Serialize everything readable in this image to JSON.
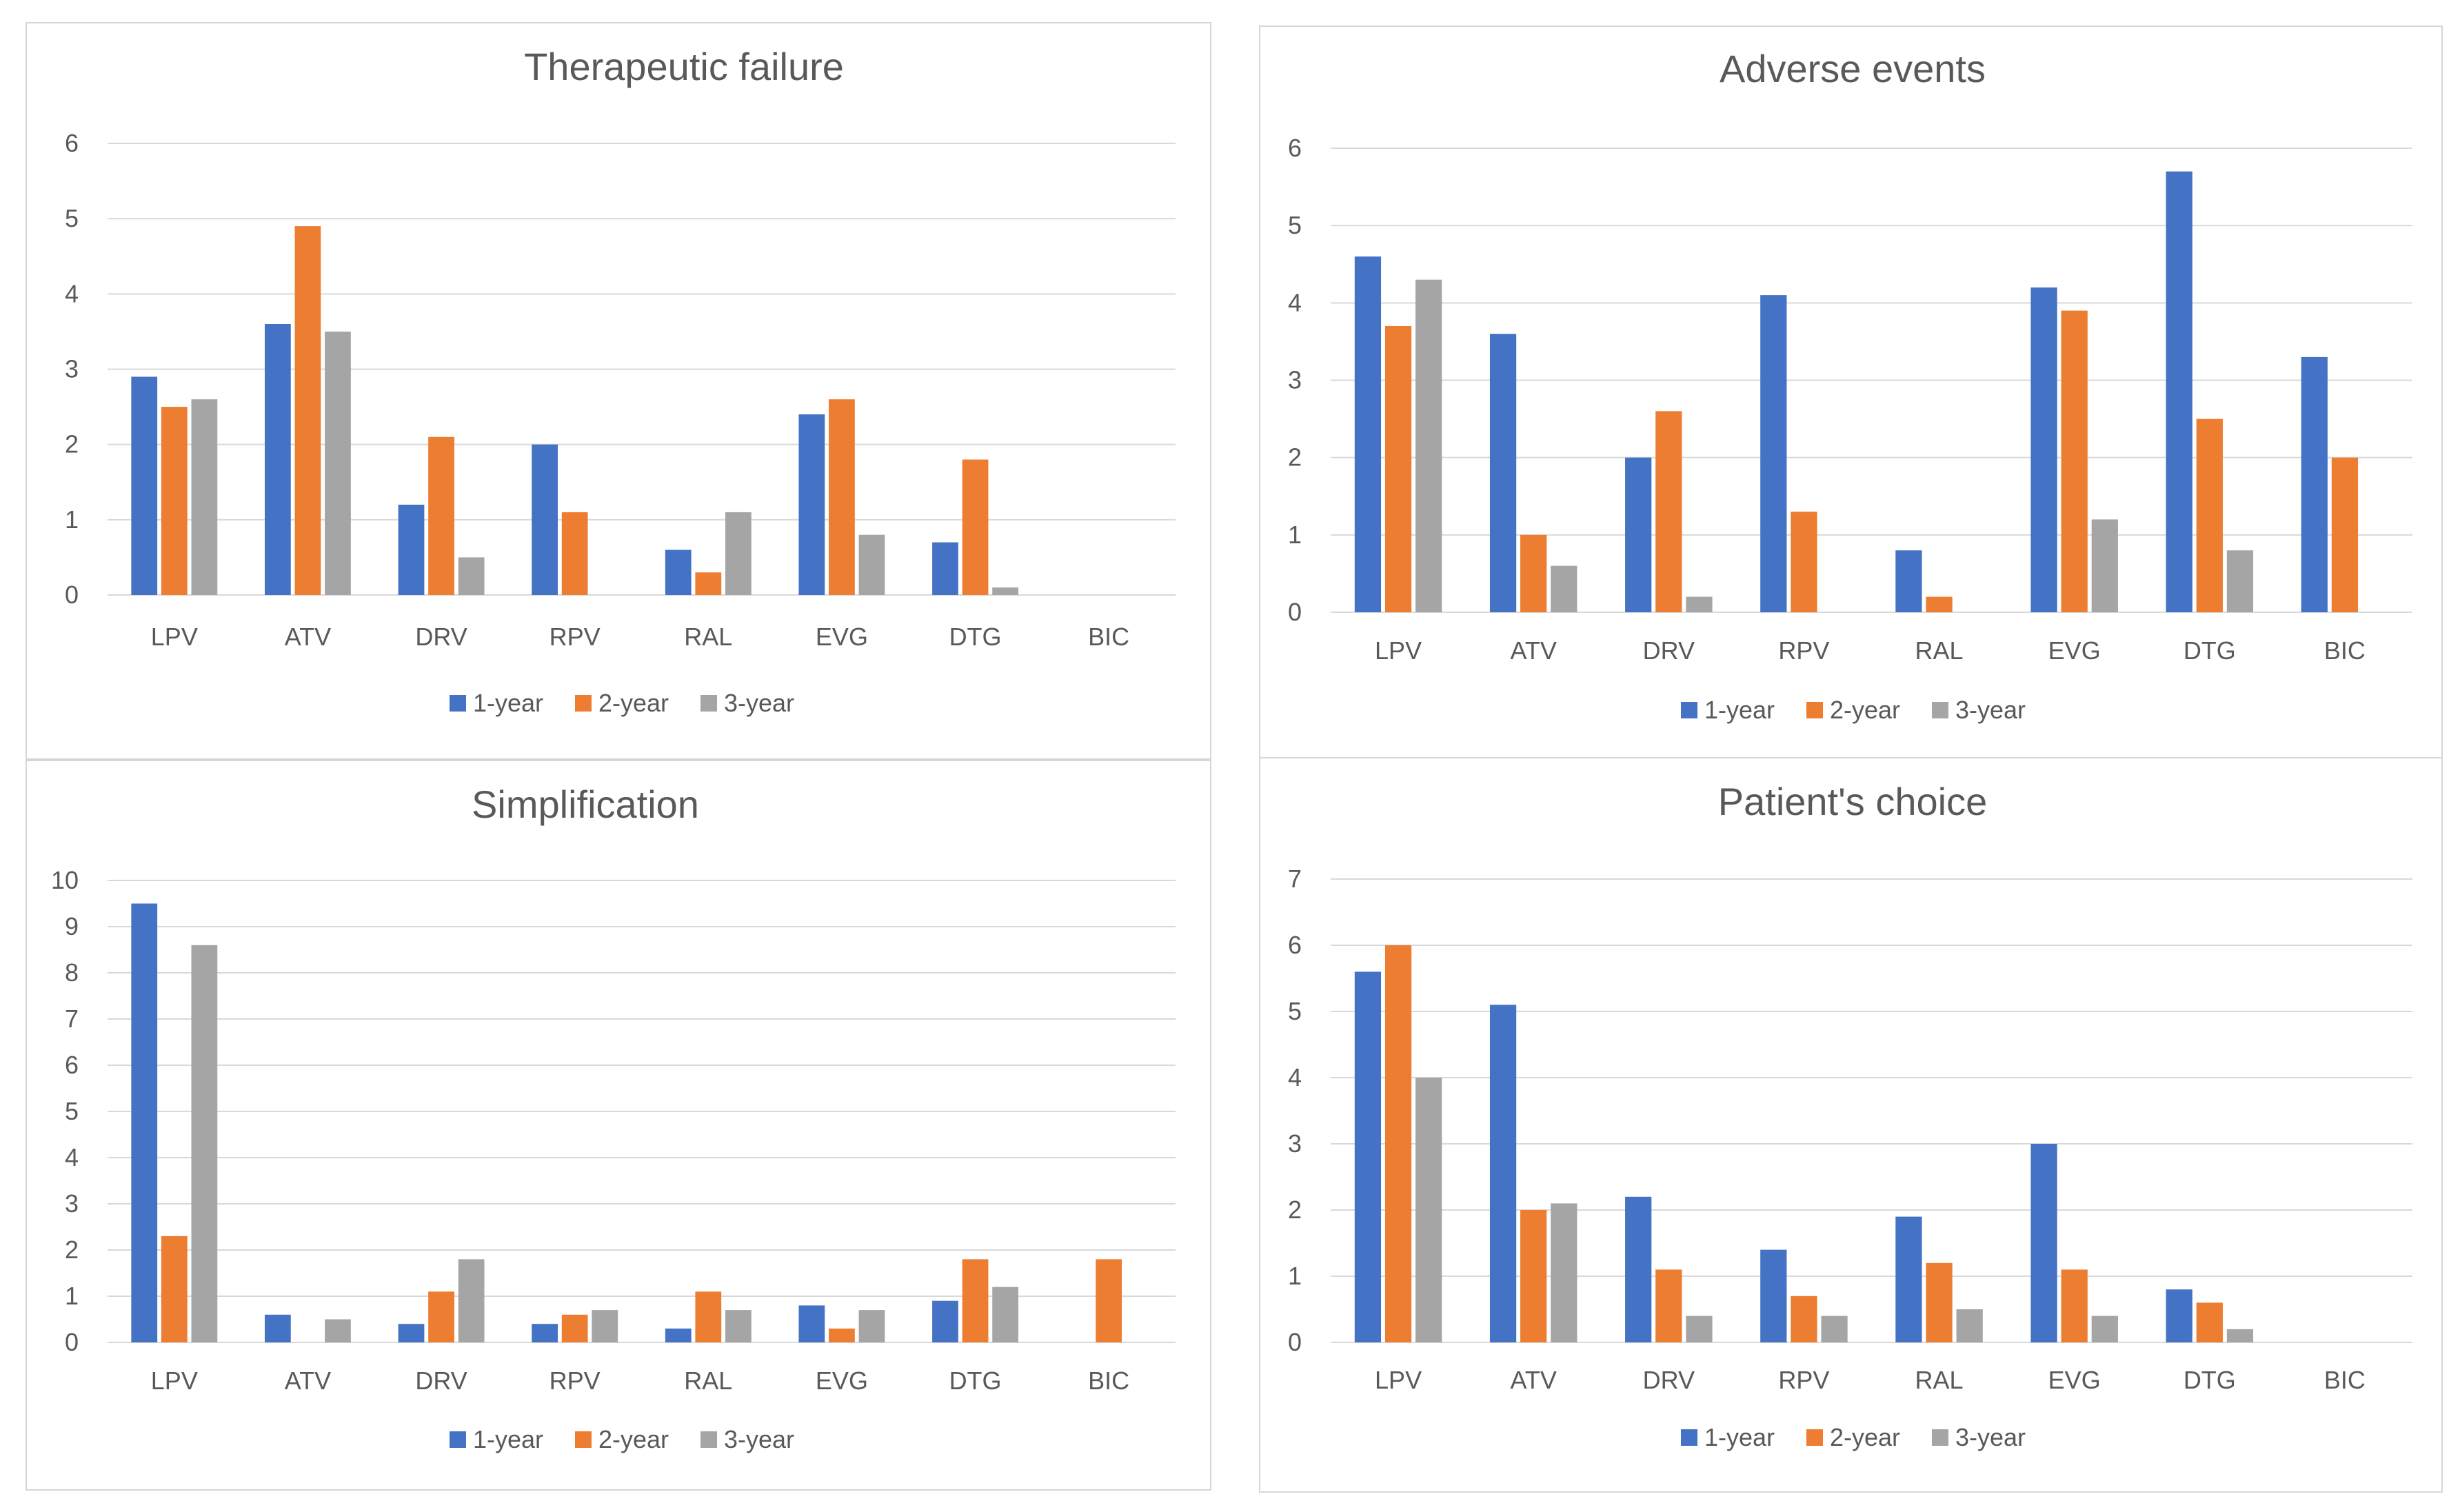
{
  "colors": {
    "1-year": "#4472c4",
    "2-year": "#ed7d31",
    "3-year": "#a5a5a5",
    "grid": "#d9d9d9",
    "text": "#595959"
  },
  "chart_data": [
    {
      "type": "bar",
      "title": "Therapeutic failure",
      "categories": [
        "LPV",
        "ATV",
        "DRV",
        "RPV",
        "RAL",
        "EVG",
        "DTG",
        "BIC"
      ],
      "ylim": [
        0,
        6
      ],
      "yticks": [
        "0",
        "1",
        "2",
        "3",
        "4",
        "5",
        "6"
      ],
      "series": [
        {
          "name": "1-year",
          "values": [
            2.9,
            3.6,
            1.2,
            2.0,
            0.6,
            2.4,
            0.7,
            0
          ]
        },
        {
          "name": "2-year",
          "values": [
            2.5,
            4.9,
            2.1,
            1.1,
            0.3,
            2.6,
            1.8,
            0
          ]
        },
        {
          "name": "3-year",
          "values": [
            2.6,
            3.5,
            0.5,
            0,
            1.1,
            0.8,
            0.1,
            0
          ]
        }
      ],
      "legend": "bottom",
      "grid": true
    },
    {
      "type": "bar",
      "title": "Adverse events",
      "categories": [
        "LPV",
        "ATV",
        "DRV",
        "RPV",
        "RAL",
        "EVG",
        "DTG",
        "BIC"
      ],
      "ylim": [
        0,
        6
      ],
      "yticks": [
        "0",
        "1",
        "2",
        "3",
        "4",
        "5",
        "6"
      ],
      "series": [
        {
          "name": "1-year",
          "values": [
            4.6,
            3.6,
            2.0,
            4.1,
            0.8,
            4.2,
            5.7,
            3.3
          ]
        },
        {
          "name": "2-year",
          "values": [
            3.7,
            1.0,
            2.6,
            1.3,
            0.2,
            3.9,
            2.5,
            2.0
          ]
        },
        {
          "name": "3-year",
          "values": [
            4.3,
            0.6,
            0.2,
            0,
            0,
            1.2,
            0.8,
            0
          ]
        }
      ],
      "legend": "bottom",
      "grid": true
    },
    {
      "type": "bar",
      "title": "Simplification",
      "categories": [
        "LPV",
        "ATV",
        "DRV",
        "RPV",
        "RAL",
        "EVG",
        "DTG",
        "BIC"
      ],
      "ylim": [
        0,
        10
      ],
      "yticks": [
        "0",
        "1",
        "2",
        "3",
        "4",
        "5",
        "6",
        "7",
        "8",
        "9",
        "10"
      ],
      "series": [
        {
          "name": "1-year",
          "values": [
            9.5,
            0.6,
            0.4,
            0.4,
            0.3,
            0.8,
            0.9,
            0
          ]
        },
        {
          "name": "2-year",
          "values": [
            2.3,
            0,
            1.1,
            0.6,
            1.1,
            0.3,
            1.8,
            1.8
          ]
        },
        {
          "name": "3-year",
          "values": [
            8.6,
            0.5,
            1.8,
            0.7,
            0.7,
            0.7,
            1.2,
            0
          ]
        }
      ],
      "legend": "bottom",
      "grid": true
    },
    {
      "type": "bar",
      "title": "Patient's choice",
      "categories": [
        "LPV",
        "ATV",
        "DRV",
        "RPV",
        "RAL",
        "EVG",
        "DTG",
        "BIC"
      ],
      "ylim": [
        0,
        7
      ],
      "yticks": [
        "0",
        "1",
        "2",
        "3",
        "4",
        "5",
        "6",
        "7"
      ],
      "series": [
        {
          "name": "1-year",
          "values": [
            5.6,
            5.1,
            2.2,
            1.4,
            1.9,
            3.0,
            0.8,
            0
          ]
        },
        {
          "name": "2-year",
          "values": [
            6.0,
            2.0,
            1.1,
            0.7,
            1.2,
            1.1,
            0.6,
            0
          ]
        },
        {
          "name": "3-year",
          "values": [
            4.0,
            2.1,
            0.4,
            0.4,
            0.5,
            0.4,
            0.2,
            0
          ]
        }
      ],
      "legend": "bottom",
      "grid": true
    }
  ]
}
